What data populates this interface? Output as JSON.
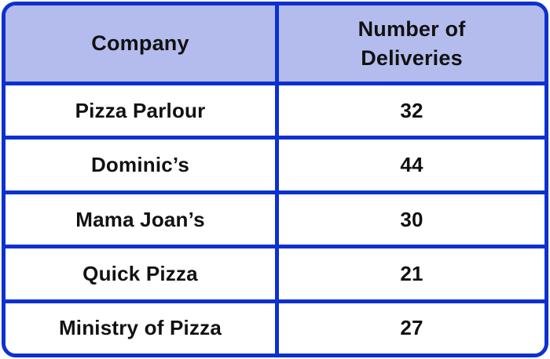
{
  "colors": {
    "border_blue": "#0d31d0",
    "header_bg": "#b4bcee",
    "row_bg": "#ffffff",
    "text": "#111111"
  },
  "table": {
    "header": {
      "company": "Company",
      "deliveries": "Number of Deliveries"
    },
    "rows": [
      {
        "company": "Pizza Parlour",
        "deliveries": "32"
      },
      {
        "company": "Dominic’s",
        "deliveries": "44"
      },
      {
        "company": "Mama Joan’s",
        "deliveries": "30"
      },
      {
        "company": "Quick Pizza",
        "deliveries": "21"
      },
      {
        "company": "Ministry of Pizza",
        "deliveries": "27"
      }
    ]
  },
  "chart_data": {
    "type": "table",
    "title": "",
    "columns": [
      "Company",
      "Number of Deliveries"
    ],
    "categories": [
      "Pizza Parlour",
      "Dominic’s",
      "Mama Joan’s",
      "Quick Pizza",
      "Ministry of Pizza"
    ],
    "values": [
      32,
      44,
      30,
      21,
      27
    ]
  }
}
